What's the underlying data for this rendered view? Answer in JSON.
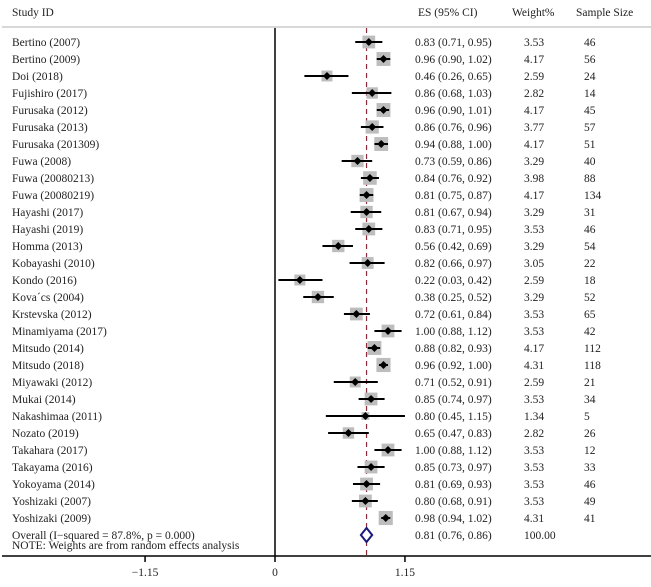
{
  "chart_data": {
    "type": "forest",
    "headers": {
      "study": "Study ID",
      "es": "ES (95% CI)",
      "weight": "Weight%",
      "sample": "Sample Size"
    },
    "studies": [
      {
        "name": "Bertino (2007)",
        "es": 0.83,
        "lo": 0.71,
        "hi": 0.95,
        "es_label": "0.83 (0.71, 0.95)",
        "weight": "3.53",
        "sample": "46"
      },
      {
        "name": "Bertino (2009)",
        "es": 0.96,
        "lo": 0.9,
        "hi": 1.02,
        "es_label": "0.96 (0.90, 1.02)",
        "weight": "4.17",
        "sample": "56"
      },
      {
        "name": "Doi (2018)",
        "es": 0.46,
        "lo": 0.26,
        "hi": 0.65,
        "es_label": "0.46 (0.26, 0.65)",
        "weight": "2.59",
        "sample": "24"
      },
      {
        "name": "Fujishiro (2017)",
        "es": 0.86,
        "lo": 0.68,
        "hi": 1.03,
        "es_label": "0.86 (0.68, 1.03)",
        "weight": "2.82",
        "sample": "14"
      },
      {
        "name": "Furusaka (2012)",
        "es": 0.96,
        "lo": 0.9,
        "hi": 1.01,
        "es_label": "0.96 (0.90, 1.01)",
        "weight": "4.17",
        "sample": "45"
      },
      {
        "name": "Furusaka (2013)",
        "es": 0.86,
        "lo": 0.76,
        "hi": 0.96,
        "es_label": "0.86 (0.76, 0.96)",
        "weight": "3.77",
        "sample": "57"
      },
      {
        "name": "Furusaka (201309)",
        "es": 0.94,
        "lo": 0.88,
        "hi": 1.0,
        "es_label": "0.94 (0.88, 1.00)",
        "weight": "4.17",
        "sample": "51"
      },
      {
        "name": "Fuwa (2008)",
        "es": 0.73,
        "lo": 0.59,
        "hi": 0.86,
        "es_label": "0.73 (0.59, 0.86)",
        "weight": "3.29",
        "sample": "40"
      },
      {
        "name": "Fuwa (20080213)",
        "es": 0.84,
        "lo": 0.76,
        "hi": 0.92,
        "es_label": "0.84 (0.76, 0.92)",
        "weight": "3.98",
        "sample": "88"
      },
      {
        "name": "Fuwa (20080219)",
        "es": 0.81,
        "lo": 0.75,
        "hi": 0.87,
        "es_label": "0.81 (0.75, 0.87)",
        "weight": "4.17",
        "sample": "134"
      },
      {
        "name": "Hayashi (2017)",
        "es": 0.81,
        "lo": 0.67,
        "hi": 0.94,
        "es_label": "0.81 (0.67, 0.94)",
        "weight": "3.29",
        "sample": "31"
      },
      {
        "name": "Hayashi (2019)",
        "es": 0.83,
        "lo": 0.71,
        "hi": 0.95,
        "es_label": "0.83 (0.71, 0.95)",
        "weight": "3.53",
        "sample": "46"
      },
      {
        "name": "Homma (2013)",
        "es": 0.56,
        "lo": 0.42,
        "hi": 0.69,
        "es_label": "0.56 (0.42, 0.69)",
        "weight": "3.29",
        "sample": "54"
      },
      {
        "name": "Kobayashi (2010)",
        "es": 0.82,
        "lo": 0.66,
        "hi": 0.97,
        "es_label": "0.82 (0.66, 0.97)",
        "weight": "3.05",
        "sample": "22"
      },
      {
        "name": "Kondo (2016)",
        "es": 0.22,
        "lo": 0.03,
        "hi": 0.42,
        "es_label": "0.22 (0.03, 0.42)",
        "weight": "2.59",
        "sample": "18"
      },
      {
        "name": "Kova´cs (2004)",
        "es": 0.38,
        "lo": 0.25,
        "hi": 0.52,
        "es_label": "0.38 (0.25, 0.52)",
        "weight": "3.29",
        "sample": "52"
      },
      {
        "name": "Krstevska (2012)",
        "es": 0.72,
        "lo": 0.61,
        "hi": 0.84,
        "es_label": "0.72 (0.61, 0.84)",
        "weight": "3.53",
        "sample": "65"
      },
      {
        "name": "Minamiyama (2017)",
        "es": 1.0,
        "lo": 0.88,
        "hi": 1.12,
        "es_label": "1.00 (0.88, 1.12)",
        "weight": "3.53",
        "sample": "42"
      },
      {
        "name": "Mitsudo (2014)",
        "es": 0.88,
        "lo": 0.82,
        "hi": 0.93,
        "es_label": "0.88 (0.82, 0.93)",
        "weight": "4.17",
        "sample": "112"
      },
      {
        "name": "Mitsudo (2018)",
        "es": 0.96,
        "lo": 0.92,
        "hi": 1.0,
        "es_label": "0.96 (0.92, 1.00)",
        "weight": "4.31",
        "sample": "118"
      },
      {
        "name": "Miyawaki (2012)",
        "es": 0.71,
        "lo": 0.52,
        "hi": 0.91,
        "es_label": "0.71 (0.52, 0.91)",
        "weight": "2.59",
        "sample": "21"
      },
      {
        "name": "Mukai (2014)",
        "es": 0.85,
        "lo": 0.74,
        "hi": 0.97,
        "es_label": "0.85 (0.74, 0.97)",
        "weight": "3.53",
        "sample": "34"
      },
      {
        "name": "Nakashimaa (2011)",
        "es": 0.8,
        "lo": 0.45,
        "hi": 1.15,
        "es_label": "0.80 (0.45, 1.15)",
        "weight": "1.34",
        "sample": "5"
      },
      {
        "name": "Nozato (2019)",
        "es": 0.65,
        "lo": 0.47,
        "hi": 0.83,
        "es_label": "0.65 (0.47, 0.83)",
        "weight": "2.82",
        "sample": "26"
      },
      {
        "name": "Takahara (2017)",
        "es": 1.0,
        "lo": 0.88,
        "hi": 1.12,
        "es_label": "1.00 (0.88, 1.12)",
        "weight": "3.53",
        "sample": "12"
      },
      {
        "name": "Takayama (2016)",
        "es": 0.85,
        "lo": 0.73,
        "hi": 0.97,
        "es_label": "0.85 (0.73, 0.97)",
        "weight": "3.53",
        "sample": "33"
      },
      {
        "name": "Yokoyama (2014)",
        "es": 0.81,
        "lo": 0.69,
        "hi": 0.93,
        "es_label": "0.81 (0.69, 0.93)",
        "weight": "3.53",
        "sample": "46"
      },
      {
        "name": "Yoshizaki (2007)",
        "es": 0.8,
        "lo": 0.68,
        "hi": 0.91,
        "es_label": "0.80 (0.68, 0.91)",
        "weight": "3.53",
        "sample": "49"
      },
      {
        "name": "Yoshizaki (2009)",
        "es": 0.98,
        "lo": 0.94,
        "hi": 1.02,
        "es_label": "0.98 (0.94, 1.02)",
        "weight": "4.31",
        "sample": "41"
      }
    ],
    "overall": {
      "name": "Overall  (I−squared = 87.8%, p = 0.000)",
      "es": 0.81,
      "lo": 0.76,
      "hi": 0.86,
      "es_label": "0.81 (0.76, 0.86)",
      "weight": "100.00"
    },
    "note": "NOTE: Weights are from random effects analysis",
    "x_ticks": [
      -1.15,
      0,
      1.15
    ],
    "x_tick_labels": [
      "−1.15",
      "0",
      "1.15"
    ],
    "xlim": [
      -1.39,
      1.15
    ],
    "null_line": 0,
    "colors": {
      "box": "#bdbdbd",
      "ci": "#000000",
      "overall_diamond": "#1a1a7a",
      "reference_line": "#8b2a3a"
    }
  }
}
